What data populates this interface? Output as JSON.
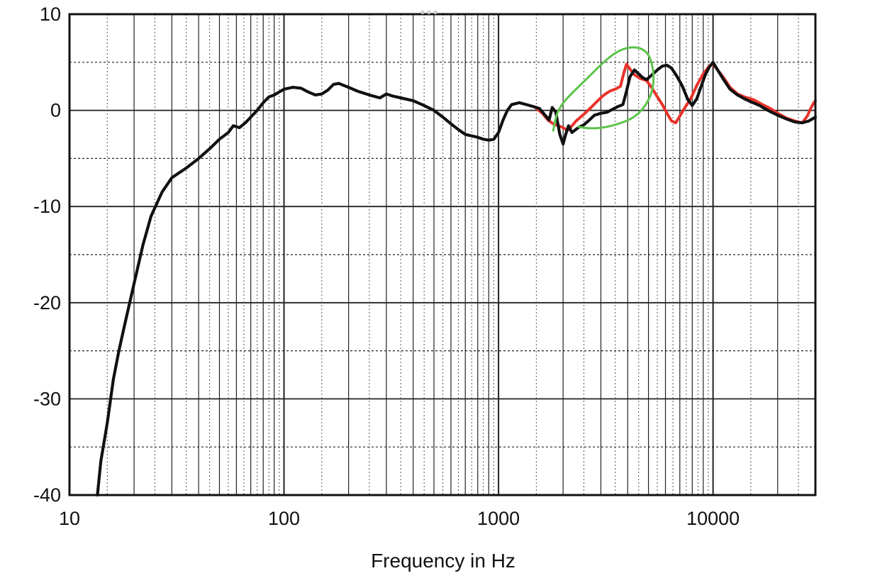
{
  "chart_data": {
    "type": "line",
    "title": "",
    "xlabel": "Frequency in Hz",
    "ylabel": "",
    "x_scale": "log",
    "xlim": [
      10,
      30000
    ],
    "ylim": [
      -40,
      10
    ],
    "x_ticks": [
      10,
      100,
      1000,
      10000
    ],
    "x_tick_labels": [
      "10",
      "100",
      "1000",
      "10000"
    ],
    "y_ticks": [
      10,
      0,
      -10,
      -20,
      -30,
      -40
    ],
    "y_tick_labels": [
      "10",
      "0",
      "-10",
      "-20",
      "-30",
      "-40"
    ],
    "grid": true,
    "legend": "none",
    "colors": {
      "black_series": "#111111",
      "red_series": "#e8322a",
      "annotation": "#5cc34a",
      "grid": "#222222",
      "background": "#ffffff"
    },
    "series": [
      {
        "color": "#111111",
        "points": [
          [
            13.5,
            -40
          ],
          [
            14,
            -36.5
          ],
          [
            15,
            -32.5
          ],
          [
            16,
            -28
          ],
          [
            17,
            -25
          ],
          [
            18,
            -22.5
          ],
          [
            20,
            -18
          ],
          [
            22,
            -14
          ],
          [
            24,
            -11
          ],
          [
            27,
            -8.5
          ],
          [
            30,
            -7
          ],
          [
            35,
            -6
          ],
          [
            40,
            -5
          ],
          [
            45,
            -4
          ],
          [
            50,
            -3
          ],
          [
            55,
            -2.3
          ],
          [
            58,
            -1.6
          ],
          [
            62,
            -1.8
          ],
          [
            66,
            -1.3
          ],
          [
            70,
            -0.7
          ],
          [
            75,
            0
          ],
          [
            80,
            0.8
          ],
          [
            85,
            1.4
          ],
          [
            90,
            1.6
          ],
          [
            100,
            2.2
          ],
          [
            110,
            2.4
          ],
          [
            120,
            2.3
          ],
          [
            130,
            1.9
          ],
          [
            140,
            1.6
          ],
          [
            150,
            1.7
          ],
          [
            160,
            2.1
          ],
          [
            170,
            2.7
          ],
          [
            180,
            2.8
          ],
          [
            200,
            2.4
          ],
          [
            220,
            2.0
          ],
          [
            250,
            1.6
          ],
          [
            280,
            1.3
          ],
          [
            300,
            1.7
          ],
          [
            320,
            1.5
          ],
          [
            350,
            1.3
          ],
          [
            400,
            1.0
          ],
          [
            450,
            0.5
          ],
          [
            500,
            0
          ],
          [
            550,
            -0.7
          ],
          [
            600,
            -1.4
          ],
          [
            650,
            -2.0
          ],
          [
            700,
            -2.5
          ],
          [
            800,
            -2.8
          ],
          [
            850,
            -3.0
          ],
          [
            900,
            -3.1
          ],
          [
            950,
            -3.0
          ],
          [
            1000,
            -2.3
          ],
          [
            1050,
            -1.0
          ],
          [
            1100,
            0
          ],
          [
            1150,
            0.6
          ],
          [
            1250,
            0.8
          ],
          [
            1350,
            0.6
          ],
          [
            1450,
            0.4
          ],
          [
            1550,
            0.2
          ],
          [
            1650,
            -0.5
          ],
          [
            1720,
            -1.0
          ],
          [
            1780,
            0.3
          ],
          [
            1850,
            -0.2
          ],
          [
            1930,
            -2.5
          ],
          [
            2000,
            -3.5
          ],
          [
            2050,
            -2.6
          ],
          [
            2120,
            -1.6
          ],
          [
            2200,
            -2.3
          ],
          [
            2350,
            -1.8
          ],
          [
            2500,
            -1.5
          ],
          [
            2650,
            -1.0
          ],
          [
            2800,
            -0.5
          ],
          [
            3000,
            -0.3
          ],
          [
            3200,
            -0.2
          ],
          [
            3400,
            0.1
          ],
          [
            3600,
            0.4
          ],
          [
            3800,
            0.6
          ],
          [
            3950,
            2.0
          ],
          [
            4100,
            3.5
          ],
          [
            4300,
            4.2
          ],
          [
            4500,
            3.8
          ],
          [
            4700,
            3.4
          ],
          [
            4900,
            3.2
          ],
          [
            5200,
            3.7
          ],
          [
            5500,
            4.2
          ],
          [
            5800,
            4.6
          ],
          [
            6100,
            4.7
          ],
          [
            6400,
            4.4
          ],
          [
            6800,
            3.5
          ],
          [
            7200,
            2.5
          ],
          [
            7600,
            1.2
          ],
          [
            8000,
            0.5
          ],
          [
            8400,
            1.2
          ],
          [
            8800,
            2.5
          ],
          [
            9200,
            3.7
          ],
          [
            9600,
            4.5
          ],
          [
            10000,
            5.0
          ],
          [
            10500,
            4.2
          ],
          [
            11200,
            3.2
          ],
          [
            12000,
            2.2
          ],
          [
            13000,
            1.6
          ],
          [
            14000,
            1.2
          ],
          [
            15000,
            0.9
          ],
          [
            16500,
            0.5
          ],
          [
            18000,
            0
          ],
          [
            20000,
            -0.5
          ],
          [
            22000,
            -0.9
          ],
          [
            24000,
            -1.2
          ],
          [
            26000,
            -1.3
          ],
          [
            28000,
            -1.1
          ],
          [
            30000,
            -0.7
          ]
        ]
      },
      {
        "color": "#e8322a",
        "points": [
          [
            1500,
            0.2
          ],
          [
            1600,
            -0.3
          ],
          [
            1700,
            -1.0
          ],
          [
            1800,
            -1.4
          ],
          [
            1900,
            -1.6
          ],
          [
            2000,
            -1.8
          ],
          [
            2100,
            -2.1
          ],
          [
            2200,
            -1.6
          ],
          [
            2300,
            -1.1
          ],
          [
            2500,
            -0.4
          ],
          [
            2700,
            0.3
          ],
          [
            2900,
            1.0
          ],
          [
            3100,
            1.6
          ],
          [
            3300,
            2.0
          ],
          [
            3500,
            2.2
          ],
          [
            3700,
            2.5
          ],
          [
            3850,
            4.0
          ],
          [
            3950,
            4.8
          ],
          [
            4100,
            4.3
          ],
          [
            4300,
            3.7
          ],
          [
            4600,
            3.3
          ],
          [
            4900,
            3.1
          ],
          [
            5200,
            2.3
          ],
          [
            5500,
            1.4
          ],
          [
            5800,
            0.6
          ],
          [
            6100,
            -0.3
          ],
          [
            6400,
            -1.1
          ],
          [
            6700,
            -1.3
          ],
          [
            7000,
            -0.6
          ],
          [
            7400,
            0.3
          ],
          [
            7900,
            1.3
          ],
          [
            8400,
            2.6
          ],
          [
            9000,
            3.8
          ],
          [
            9600,
            4.6
          ],
          [
            10000,
            4.8
          ],
          [
            10500,
            4.2
          ],
          [
            11200,
            3.4
          ],
          [
            12000,
            2.4
          ],
          [
            13000,
            1.7
          ],
          [
            14000,
            1.4
          ],
          [
            15500,
            1.1
          ],
          [
            17000,
            0.6
          ],
          [
            18500,
            0.2
          ],
          [
            20000,
            -0.3
          ],
          [
            22000,
            -0.8
          ],
          [
            24000,
            -1.1
          ],
          [
            26000,
            -1.3
          ],
          [
            27500,
            -0.6
          ],
          [
            28500,
            0.2
          ],
          [
            29500,
            0.8
          ],
          [
            30000,
            1.0
          ]
        ]
      }
    ],
    "annotations": [
      {
        "type": "hand-drawn-loop",
        "color": "#5cc34a",
        "points": [
          [
            1800,
            -2.1
          ],
          [
            1830,
            -1.2
          ],
          [
            1880,
            -0.2
          ],
          [
            2000,
            0.8
          ],
          [
            2200,
            1.8
          ],
          [
            2450,
            2.8
          ],
          [
            2750,
            3.9
          ],
          [
            3050,
            4.9
          ],
          [
            3400,
            5.8
          ],
          [
            3800,
            6.4
          ],
          [
            4250,
            6.6
          ],
          [
            4700,
            6.4
          ],
          [
            5050,
            5.7
          ],
          [
            5250,
            4.4
          ],
          [
            5300,
            3.0
          ],
          [
            5150,
            1.6
          ],
          [
            4750,
            0.2
          ],
          [
            4250,
            -0.8
          ],
          [
            3650,
            -1.4
          ],
          [
            3100,
            -1.8
          ],
          [
            2650,
            -1.9
          ],
          [
            2350,
            -1.7
          ]
        ]
      }
    ],
    "window_controls": "•••"
  }
}
